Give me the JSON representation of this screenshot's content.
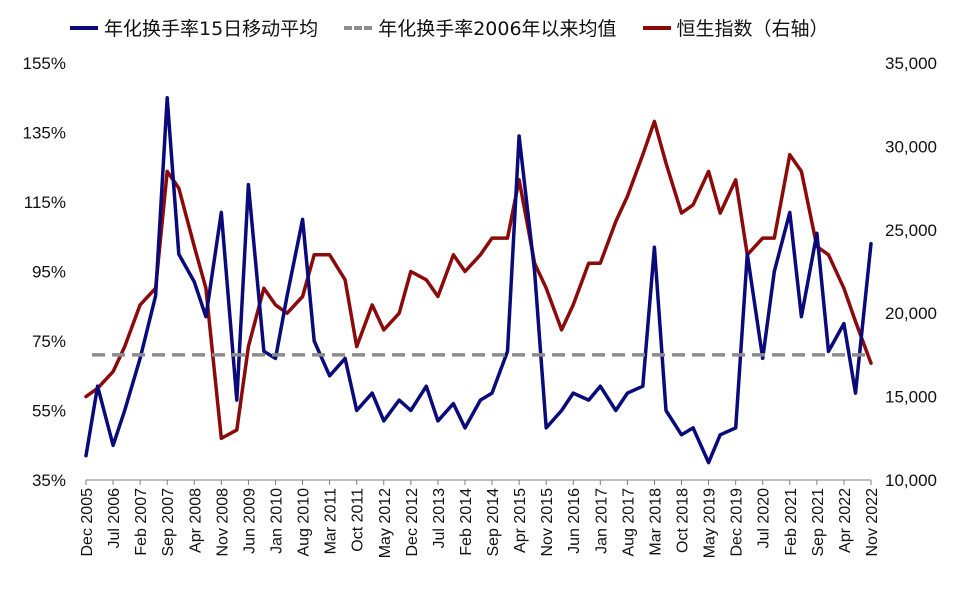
{
  "chart_data": {
    "type": "line",
    "legend_position": "top",
    "grid": false,
    "colors": {
      "turnover": "#0a0a7a",
      "average": "#8c8c8c",
      "hsi": "#8b0a0a"
    },
    "series": [
      {
        "name": "年化换手率15日移动平均",
        "axis": "left",
        "x": [
          "2005-12",
          "2006-03",
          "2006-07",
          "2006-10",
          "2007-02",
          "2007-06",
          "2007-09",
          "2007-12",
          "2008-04",
          "2008-07",
          "2008-11",
          "2009-03",
          "2009-06",
          "2009-10",
          "2010-01",
          "2010-04",
          "2010-08",
          "2010-11",
          "2011-03",
          "2011-07",
          "2011-10",
          "2012-02",
          "2012-05",
          "2012-09",
          "2012-12",
          "2013-04",
          "2013-07",
          "2013-11",
          "2014-02",
          "2014-06",
          "2014-09",
          "2015-01",
          "2015-04",
          "2015-08",
          "2015-11",
          "2016-03",
          "2016-06",
          "2016-10",
          "2017-01",
          "2017-05",
          "2017-08",
          "2017-12",
          "2018-03",
          "2018-06",
          "2018-10",
          "2019-01",
          "2019-05",
          "2019-08",
          "2019-12",
          "2020-03",
          "2020-07",
          "2020-10",
          "2021-02",
          "2021-05",
          "2021-09",
          "2021-12",
          "2022-04",
          "2022-07",
          "2022-11"
        ],
        "values": [
          42,
          62,
          45,
          55,
          70,
          88,
          145,
          100,
          92,
          82,
          112,
          58,
          120,
          72,
          70,
          88,
          110,
          75,
          65,
          70,
          55,
          60,
          52,
          58,
          55,
          62,
          52,
          57,
          50,
          58,
          60,
          72,
          134,
          95,
          50,
          55,
          60,
          58,
          62,
          55,
          60,
          62,
          102,
          55,
          48,
          50,
          40,
          48,
          50,
          100,
          70,
          95,
          112,
          82,
          106,
          72,
          80,
          60,
          103
        ]
      },
      {
        "name": "年化换手率2006年以来均值",
        "axis": "left",
        "values": [
          71,
          71
        ]
      },
      {
        "name": "恒生指数（右轴）",
        "axis": "right",
        "x": [
          "2005-12",
          "2006-03",
          "2006-07",
          "2006-10",
          "2007-02",
          "2007-06",
          "2007-09",
          "2007-12",
          "2008-04",
          "2008-07",
          "2008-11",
          "2009-03",
          "2009-06",
          "2009-10",
          "2010-01",
          "2010-04",
          "2010-08",
          "2010-11",
          "2011-03",
          "2011-07",
          "2011-10",
          "2012-02",
          "2012-05",
          "2012-09",
          "2012-12",
          "2013-04",
          "2013-07",
          "2013-11",
          "2014-02",
          "2014-06",
          "2014-09",
          "2015-01",
          "2015-04",
          "2015-08",
          "2015-11",
          "2016-03",
          "2016-06",
          "2016-10",
          "2017-01",
          "2017-05",
          "2017-08",
          "2017-12",
          "2018-03",
          "2018-06",
          "2018-10",
          "2019-01",
          "2019-05",
          "2019-08",
          "2019-12",
          "2020-03",
          "2020-07",
          "2020-10",
          "2021-02",
          "2021-05",
          "2021-09",
          "2021-12",
          "2022-04",
          "2022-07",
          "2022-11"
        ],
        "values": [
          15000,
          15500,
          16500,
          18000,
          20500,
          21500,
          28500,
          27500,
          24000,
          21500,
          12500,
          13000,
          18000,
          21500,
          20500,
          20000,
          21000,
          23500,
          23500,
          22000,
          18000,
          20500,
          19000,
          20000,
          22500,
          22000,
          21000,
          23500,
          22500,
          23500,
          24500,
          24500,
          28000,
          23000,
          21500,
          19000,
          20500,
          23000,
          23000,
          25500,
          27000,
          29500,
          31500,
          29000,
          26000,
          26500,
          28500,
          26000,
          28000,
          23500,
          24500,
          24500,
          29500,
          28500,
          24000,
          23500,
          21500,
          19500,
          17000
        ]
      }
    ],
    "x_tick_labels": [
      "Dec 2005",
      "Jul 2006",
      "Feb 2007",
      "Sep 2007",
      "Apr 2008",
      "Nov 2008",
      "Jun 2009",
      "Jan 2010",
      "Aug 2010",
      "Mar 2011",
      "Oct 2011",
      "May 2012",
      "Dec 2012",
      "Jul 2013",
      "Feb 2014",
      "Sep 2014",
      "Apr 2015",
      "Nov 2015",
      "Jun 2016",
      "Jan 2017",
      "Aug 2017",
      "Mar 2018",
      "Oct 2018",
      "May 2019",
      "Dec 2019",
      "Jul 2020",
      "Feb 2021",
      "Sep 2021",
      "Apr 2022",
      "Nov 2022"
    ],
    "y_left": {
      "ylim": [
        35,
        155
      ],
      "ticks": [
        "35%",
        "55%",
        "75%",
        "95%",
        "115%",
        "135%",
        "155%"
      ]
    },
    "y_right": {
      "ylim": [
        10000,
        35000
      ],
      "ticks": [
        "10,000",
        "15,000",
        "20,000",
        "25,000",
        "30,000",
        "35,000"
      ]
    }
  }
}
